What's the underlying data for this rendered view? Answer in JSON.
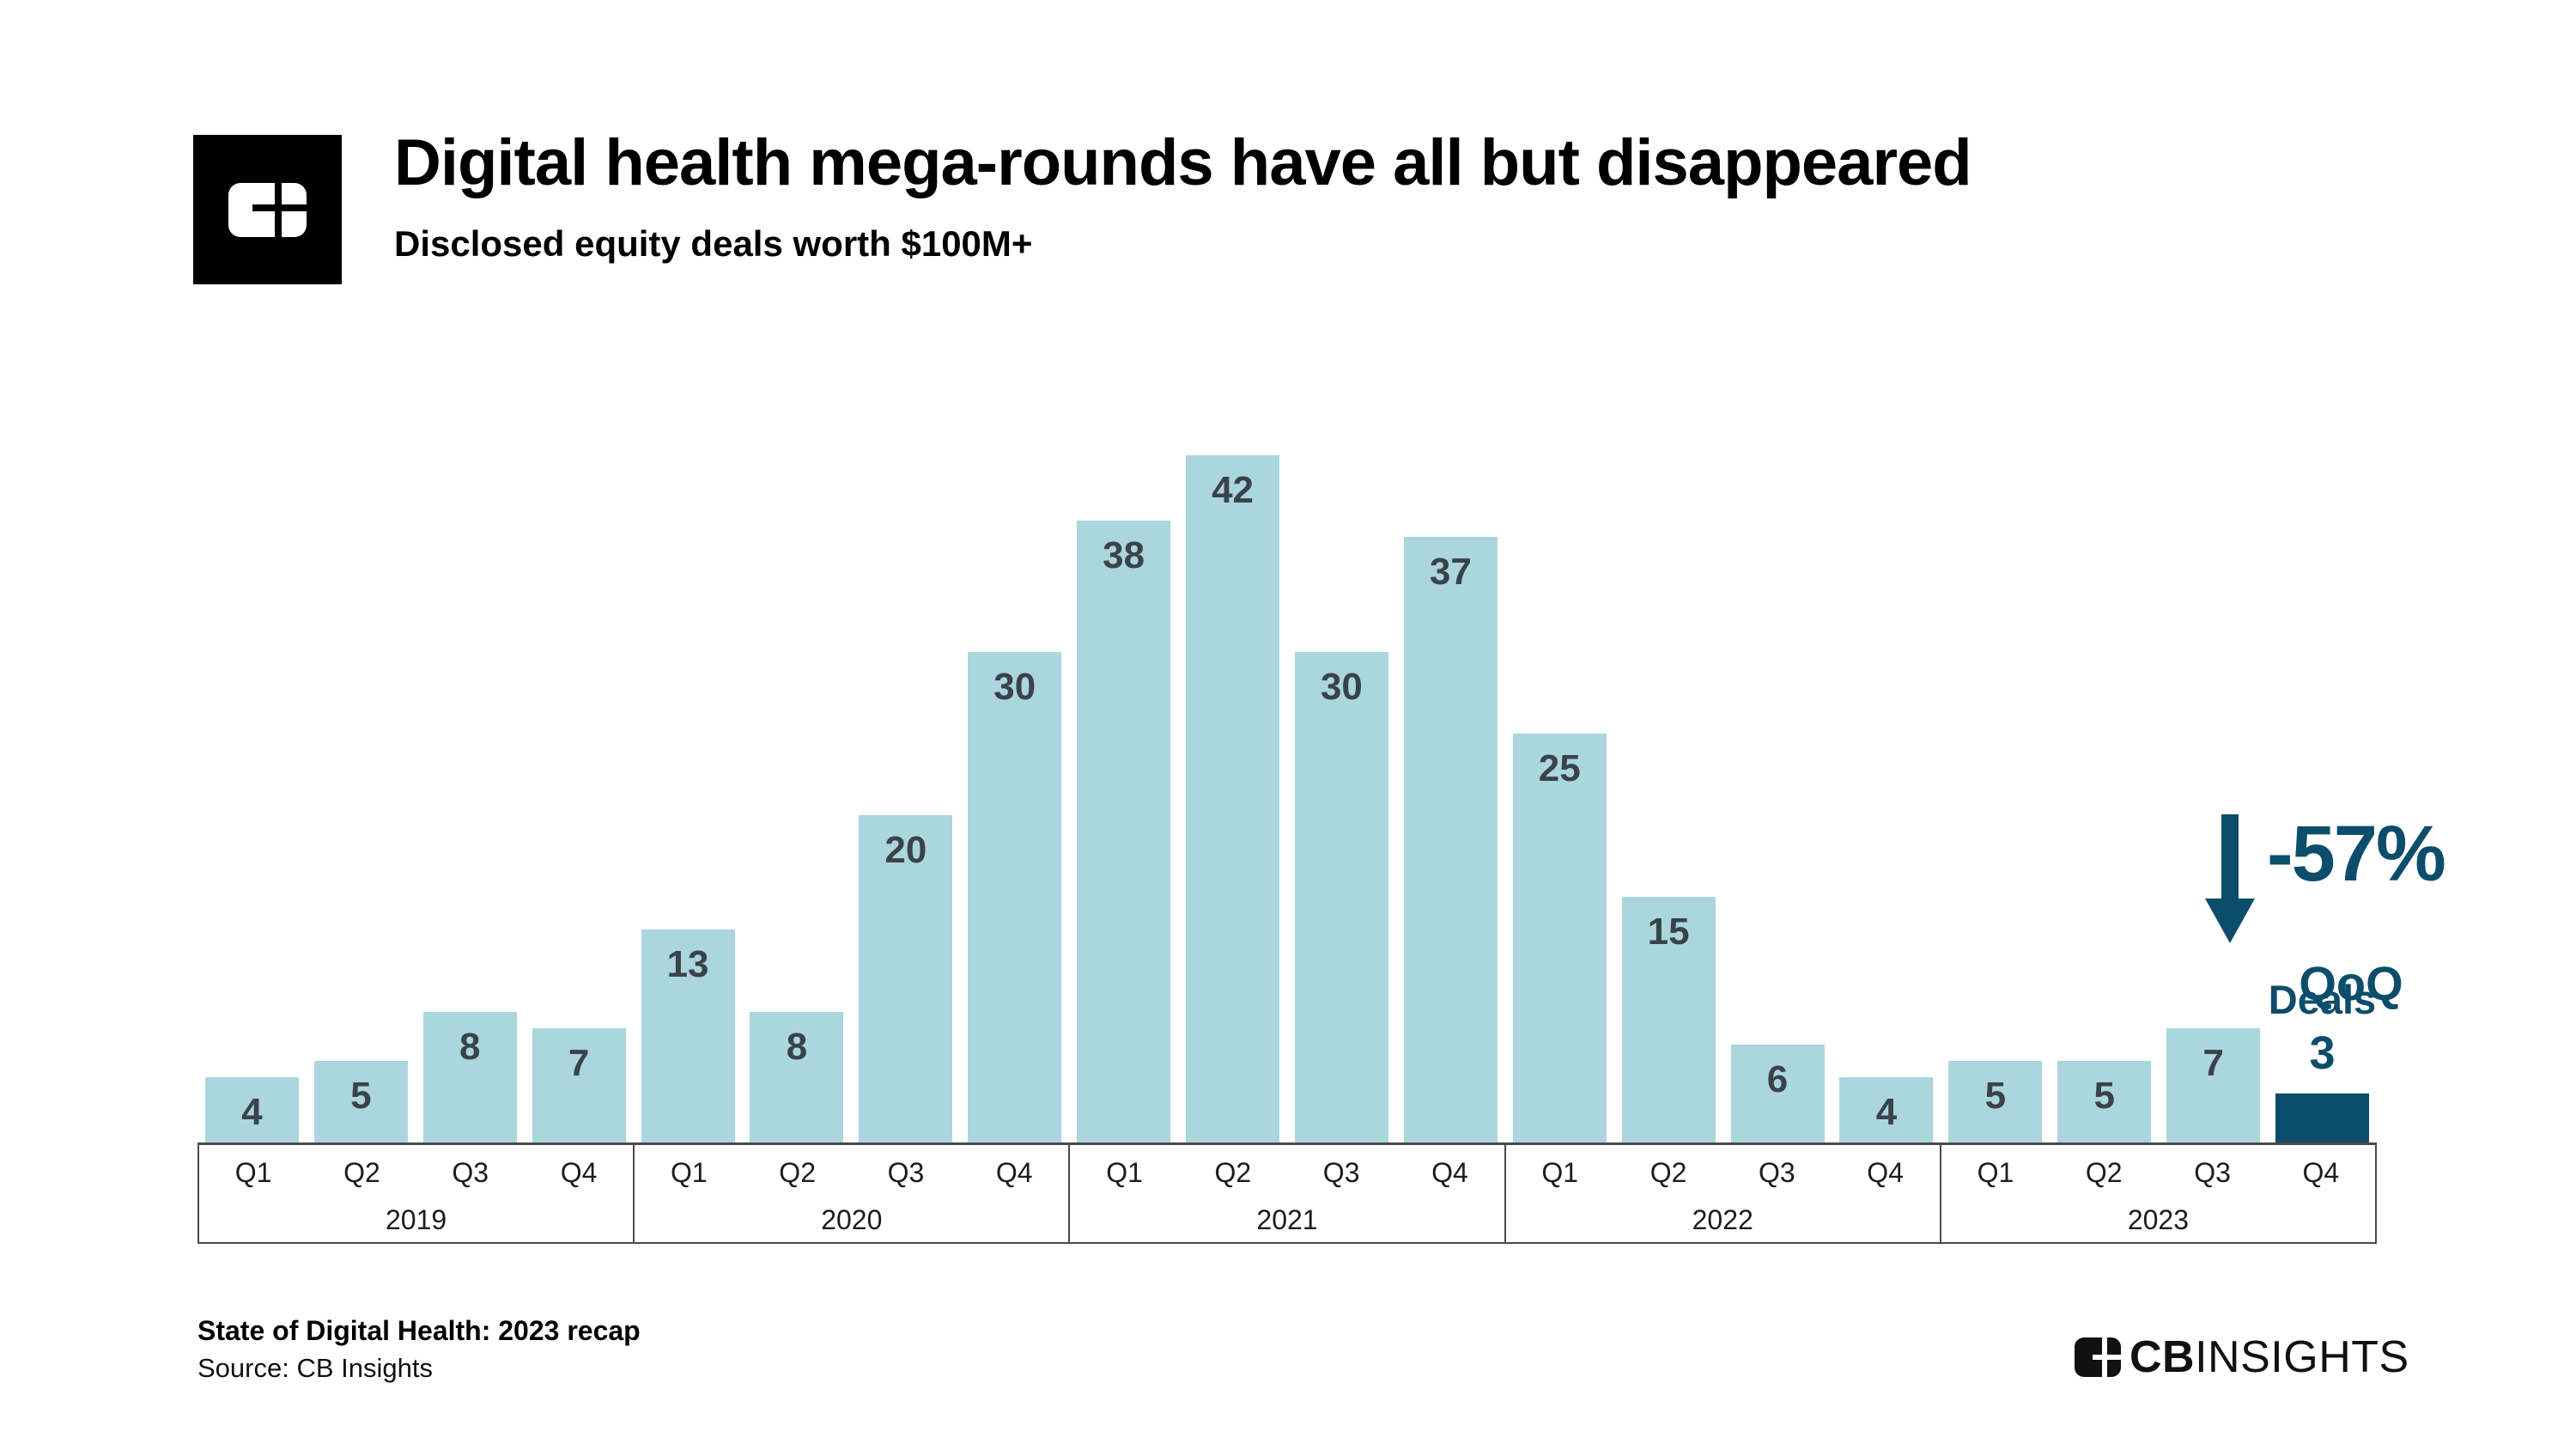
{
  "chart_data": {
    "type": "bar",
    "title": "Digital health mega-rounds have all but disappeared",
    "subtitle": "Disclosed equity deals worth $100M+",
    "years": [
      "2019",
      "2020",
      "2021",
      "2022",
      "2023"
    ],
    "quarter_labels": [
      "Q1",
      "Q2",
      "Q3",
      "Q4"
    ],
    "categories": [
      "2019 Q1",
      "2019 Q2",
      "2019 Q3",
      "2019 Q4",
      "2020 Q1",
      "2020 Q2",
      "2020 Q3",
      "2020 Q4",
      "2021 Q1",
      "2021 Q2",
      "2021 Q3",
      "2021 Q4",
      "2022 Q1",
      "2022 Q2",
      "2022 Q3",
      "2022 Q4",
      "2023 Q1",
      "2023 Q2",
      "2023 Q3",
      "2023 Q4"
    ],
    "values": [
      4,
      5,
      8,
      7,
      13,
      8,
      20,
      30,
      38,
      42,
      30,
      37,
      25,
      15,
      6,
      4,
      5,
      5,
      7,
      3
    ],
    "highlight_index": 19,
    "bar_color": "#abd6de",
    "highlight_color": "#0d4d6c",
    "value_label_color": "#3a434a",
    "xlabel": "",
    "ylabel": "",
    "ylim": [
      0,
      42
    ],
    "grid": false,
    "legend": "none"
  },
  "annotation": {
    "arrow_icon": "down-arrow",
    "pct_change": "-57%",
    "pct_caption": "QoQ",
    "deals_label": "Deals",
    "deals_value": "3",
    "color": "#0d4d6c"
  },
  "footer": {
    "report": "State of Digital Health: 2023 recap",
    "source": "Source: CB Insights",
    "brand_cb": "CB",
    "brand_insights": "INSIGHTS"
  }
}
